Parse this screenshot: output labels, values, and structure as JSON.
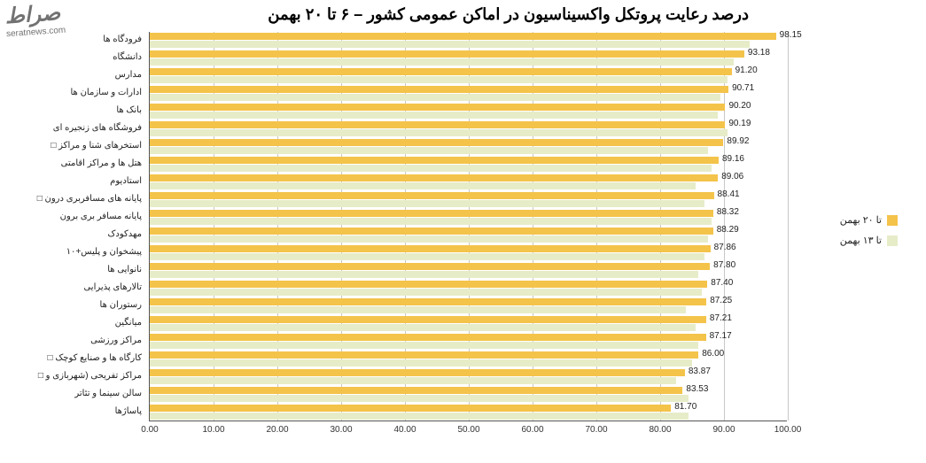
{
  "watermark": "صراط\nseratnews.com",
  "title": "درصد رعایت پروتکل واکسیناسیون در اماکن عمومی کشور – ۶ تا ۲۰ بهمن",
  "chart": {
    "type": "bar",
    "orientation": "horizontal",
    "background_color": "#ffffff",
    "grid_color": "#c8c8c8",
    "xlim": [
      0,
      100
    ],
    "xtick_step": 10,
    "xticks": [
      "0.00",
      "10.00",
      "20.00",
      "30.00",
      "40.00",
      "50.00",
      "60.00",
      "70.00",
      "80.00",
      "90.00",
      "100.00"
    ],
    "series": [
      {
        "name": "تا ۲۰ بهمن",
        "color": "#f4c34a"
      },
      {
        "name": "تا ۱۳ بهمن",
        "color": "#e7ecc8"
      }
    ],
    "categories": [
      "فرودگاه ها",
      "دانشگاه",
      "مدارس",
      "ادارات و سازمان ها",
      "بانک ها",
      "فروشگاه های زنجیره ای",
      "استخرهای شنا و مراکز □",
      "هتل ها و مراکز اقامتی",
      "استادیوم",
      "پایانه های مسافربری درون □",
      "پایانه مسافر بری برون",
      "مهدکودک",
      "پیشخوان و پلیس+۱۰",
      "نانوایی ها",
      "تالارهای پذیرایی",
      "رستوران ها",
      "میانگین",
      "مراکز ورزشی",
      "کارگاه ها و صنایع کوچک □",
      "مراکز تفریحی (شهربازی و □",
      "سالن سینما و تئاتر",
      "پاساژها"
    ],
    "values_s1": [
      98.15,
      93.18,
      91.2,
      90.71,
      90.2,
      90.19,
      89.92,
      89.16,
      89.06,
      88.41,
      88.32,
      88.29,
      87.86,
      87.8,
      87.4,
      87.25,
      87.21,
      87.17,
      86.0,
      83.87,
      83.53,
      81.7
    ],
    "values_s2": [
      94.0,
      91.5,
      90.5,
      89.5,
      89.0,
      90.5,
      87.5,
      88.0,
      85.5,
      87.0,
      88.0,
      87.5,
      87.0,
      86.0,
      86.5,
      84.0,
      85.5,
      86.0,
      85.0,
      82.5,
      84.5,
      84.5
    ],
    "label_fontsize": 10,
    "title_fontsize": 18
  },
  "legend": {
    "items": [
      {
        "label": "تا ۲۰ بهمن",
        "color": "#f4c34a"
      },
      {
        "label": "تا ۱۳ بهمن",
        "color": "#e7ecc8"
      }
    ]
  }
}
